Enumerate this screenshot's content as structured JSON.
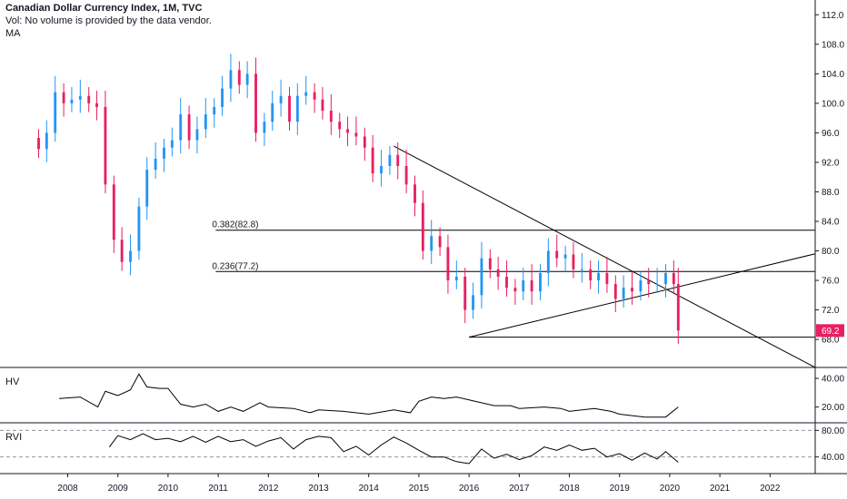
{
  "header": {
    "title": "Canadian Dollar Currency Index, 1M, TVC",
    "volume_note": "Vol: No volume is provided by the data vendor.",
    "ma_label": "MA"
  },
  "panes": {
    "hv_label": "HV",
    "rvi_label": "RVI"
  },
  "colors": {
    "up": "#2196f3",
    "down": "#e91e63",
    "line": "#000000",
    "grid_dash": "#9598a1"
  },
  "chart_data": [
    {
      "type": "candlestick",
      "title": "Canadian Dollar Currency Index, 1M, TVC",
      "xlabel": "",
      "ylabel": "",
      "x_ticks": [
        "2008",
        "2009",
        "2010",
        "2011",
        "2012",
        "2013",
        "2014",
        "2015",
        "2016",
        "2017",
        "2018",
        "2019",
        "2020",
        "2021",
        "2022"
      ],
      "y_ticks": [
        "112.0",
        "108.0",
        "104.0",
        "100.0",
        "96.0",
        "92.0",
        "88.0",
        "84.0",
        "80.0",
        "76.0",
        "72.0",
        "68.0"
      ],
      "ylim": [
        64.2,
        114
      ],
      "xlim": [
        2006.65,
        2022.9
      ],
      "last_value_label": "69.2",
      "close_series": [
        [
          2007.42,
          93.8
        ],
        [
          2007.58,
          96.0
        ],
        [
          2007.75,
          101.5
        ],
        [
          2007.92,
          100.0
        ],
        [
          2008.08,
          100.5
        ],
        [
          2008.25,
          101.0
        ],
        [
          2008.42,
          100.0
        ],
        [
          2008.58,
          99.5
        ],
        [
          2008.75,
          89.0
        ],
        [
          2008.92,
          81.5
        ],
        [
          2009.08,
          78.5
        ],
        [
          2009.25,
          80.0
        ],
        [
          2009.42,
          86.0
        ],
        [
          2009.58,
          91.0
        ],
        [
          2009.75,
          92.5
        ],
        [
          2009.92,
          94.0
        ],
        [
          2010.08,
          95.0
        ],
        [
          2010.25,
          98.5
        ],
        [
          2010.42,
          95.0
        ],
        [
          2010.58,
          96.5
        ],
        [
          2010.75,
          98.5
        ],
        [
          2010.92,
          99.5
        ],
        [
          2011.08,
          102.0
        ],
        [
          2011.25,
          104.5
        ],
        [
          2011.42,
          102.5
        ],
        [
          2011.58,
          104.0
        ],
        [
          2011.75,
          96.0
        ],
        [
          2011.92,
          97.5
        ],
        [
          2012.08,
          100.0
        ],
        [
          2012.25,
          101.0
        ],
        [
          2012.42,
          97.5
        ],
        [
          2012.58,
          101.0
        ],
        [
          2012.75,
          101.5
        ],
        [
          2012.92,
          100.5
        ],
        [
          2013.08,
          99.0
        ],
        [
          2013.25,
          97.5
        ],
        [
          2013.42,
          96.5
        ],
        [
          2013.58,
          96.0
        ],
        [
          2013.75,
          95.5
        ],
        [
          2013.92,
          94.0
        ],
        [
          2014.08,
          90.5
        ],
        [
          2014.25,
          91.5
        ],
        [
          2014.42,
          93.0
        ],
        [
          2014.58,
          91.5
        ],
        [
          2014.75,
          89.0
        ],
        [
          2014.92,
          86.5
        ],
        [
          2015.08,
          80.0
        ],
        [
          2015.25,
          82.0
        ],
        [
          2015.42,
          80.5
        ],
        [
          2015.58,
          76.0
        ],
        [
          2015.75,
          76.5
        ],
        [
          2015.92,
          72.0
        ],
        [
          2016.08,
          74.0
        ],
        [
          2016.25,
          79.0
        ],
        [
          2016.42,
          77.5
        ],
        [
          2016.58,
          76.5
        ],
        [
          2016.75,
          75.0
        ],
        [
          2016.92,
          74.5
        ],
        [
          2017.08,
          76.0
        ],
        [
          2017.25,
          74.5
        ],
        [
          2017.42,
          77.0
        ],
        [
          2017.58,
          80.0
        ],
        [
          2017.75,
          79.0
        ],
        [
          2017.92,
          79.5
        ],
        [
          2018.08,
          77.5
        ],
        [
          2018.25,
          77.5
        ],
        [
          2018.42,
          76.0
        ],
        [
          2018.58,
          77.0
        ],
        [
          2018.75,
          75.5
        ],
        [
          2018.92,
          73.5
        ],
        [
          2019.08,
          75.0
        ],
        [
          2019.25,
          74.5
        ],
        [
          2019.42,
          76.0
        ],
        [
          2019.58,
          75.5
        ],
        [
          2019.75,
          75.5
        ],
        [
          2019.92,
          77.0
        ],
        [
          2020.08,
          75.5
        ],
        [
          2020.17,
          69.2
        ]
      ],
      "annotations": {
        "fib_levels": [
          {
            "label": "0.382(82.8)",
            "value": 82.8
          },
          {
            "label": "0.236(77.2)",
            "value": 77.2
          }
        ],
        "trendlines": [
          {
            "from": [
              2014.5,
              94.2
            ],
            "to": [
              2022.9,
              64.2
            ]
          },
          {
            "from": [
              2016.0,
              68.3
            ],
            "to": [
              2022.9,
              79.6
            ]
          },
          {
            "from": [
              2016.0,
              68.3
            ],
            "to": [
              2022.9,
              68.3
            ]
          }
        ]
      }
    },
    {
      "type": "line",
      "title": "HV",
      "y_ticks": [
        "40.00",
        "20.00"
      ],
      "ylim": [
        9,
        47
      ],
      "series": [
        {
          "values": [
            [
              2007.83,
              26
            ],
            [
              2008.25,
              27
            ],
            [
              2008.6,
              20
            ],
            [
              2008.75,
              31
            ],
            [
              2009.0,
              28
            ],
            [
              2009.25,
              32
            ],
            [
              2009.42,
              43
            ],
            [
              2009.58,
              34
            ],
            [
              2009.83,
              33
            ],
            [
              2010.0,
              33
            ],
            [
              2010.25,
              22
            ],
            [
              2010.5,
              20
            ],
            [
              2010.75,
              22
            ],
            [
              2011.0,
              17
            ],
            [
              2011.25,
              20
            ],
            [
              2011.5,
              17
            ],
            [
              2011.83,
              23
            ],
            [
              2012.0,
              20
            ],
            [
              2012.5,
              19
            ],
            [
              2012.83,
              16
            ],
            [
              2013.0,
              18
            ],
            [
              2013.5,
              17
            ],
            [
              2014.0,
              15
            ],
            [
              2014.5,
              18
            ],
            [
              2014.83,
              16
            ],
            [
              2015.0,
              24
            ],
            [
              2015.25,
              27
            ],
            [
              2015.5,
              26
            ],
            [
              2015.75,
              27
            ],
            [
              2016.0,
              25
            ],
            [
              2016.5,
              21
            ],
            [
              2016.83,
              21
            ],
            [
              2017.0,
              19
            ],
            [
              2017.5,
              20
            ],
            [
              2017.83,
              19
            ],
            [
              2018.0,
              17
            ],
            [
              2018.5,
              19
            ],
            [
              2018.83,
              17
            ],
            [
              2019.0,
              15
            ],
            [
              2019.5,
              13
            ],
            [
              2019.92,
              13
            ],
            [
              2020.17,
              20
            ]
          ]
        }
      ]
    },
    {
      "type": "line",
      "title": "RVI",
      "y_ticks": [
        "80.00",
        "40.00"
      ],
      "ylim": [
        15,
        90
      ],
      "series": [
        {
          "values": [
            [
              2008.83,
              55
            ],
            [
              2009.0,
              72
            ],
            [
              2009.25,
              66
            ],
            [
              2009.5,
              75
            ],
            [
              2009.75,
              66
            ],
            [
              2010.0,
              68
            ],
            [
              2010.25,
              63
            ],
            [
              2010.5,
              71
            ],
            [
              2010.75,
              62
            ],
            [
              2011.0,
              71
            ],
            [
              2011.25,
              63
            ],
            [
              2011.5,
              66
            ],
            [
              2011.75,
              56
            ],
            [
              2012.0,
              64
            ],
            [
              2012.25,
              69
            ],
            [
              2012.5,
              52
            ],
            [
              2012.75,
              66
            ],
            [
              2013.0,
              71
            ],
            [
              2013.25,
              69
            ],
            [
              2013.5,
              48
            ],
            [
              2013.75,
              56
            ],
            [
              2014.0,
              43
            ],
            [
              2014.25,
              58
            ],
            [
              2014.5,
              70
            ],
            [
              2014.75,
              61
            ],
            [
              2015.0,
              50
            ],
            [
              2015.25,
              40
            ],
            [
              2015.5,
              40
            ],
            [
              2015.75,
              33
            ],
            [
              2016.0,
              30
            ],
            [
              2016.25,
              52
            ],
            [
              2016.5,
              38
            ],
            [
              2016.75,
              44
            ],
            [
              2017.0,
              36
            ],
            [
              2017.25,
              42
            ],
            [
              2017.5,
              55
            ],
            [
              2017.75,
              50
            ],
            [
              2018.0,
              58
            ],
            [
              2018.25,
              50
            ],
            [
              2018.5,
              53
            ],
            [
              2018.75,
              40
            ],
            [
              2019.0,
              45
            ],
            [
              2019.25,
              35
            ],
            [
              2019.5,
              46
            ],
            [
              2019.75,
              37
            ],
            [
              2019.92,
              48
            ],
            [
              2020.17,
              32
            ]
          ]
        }
      ]
    }
  ]
}
